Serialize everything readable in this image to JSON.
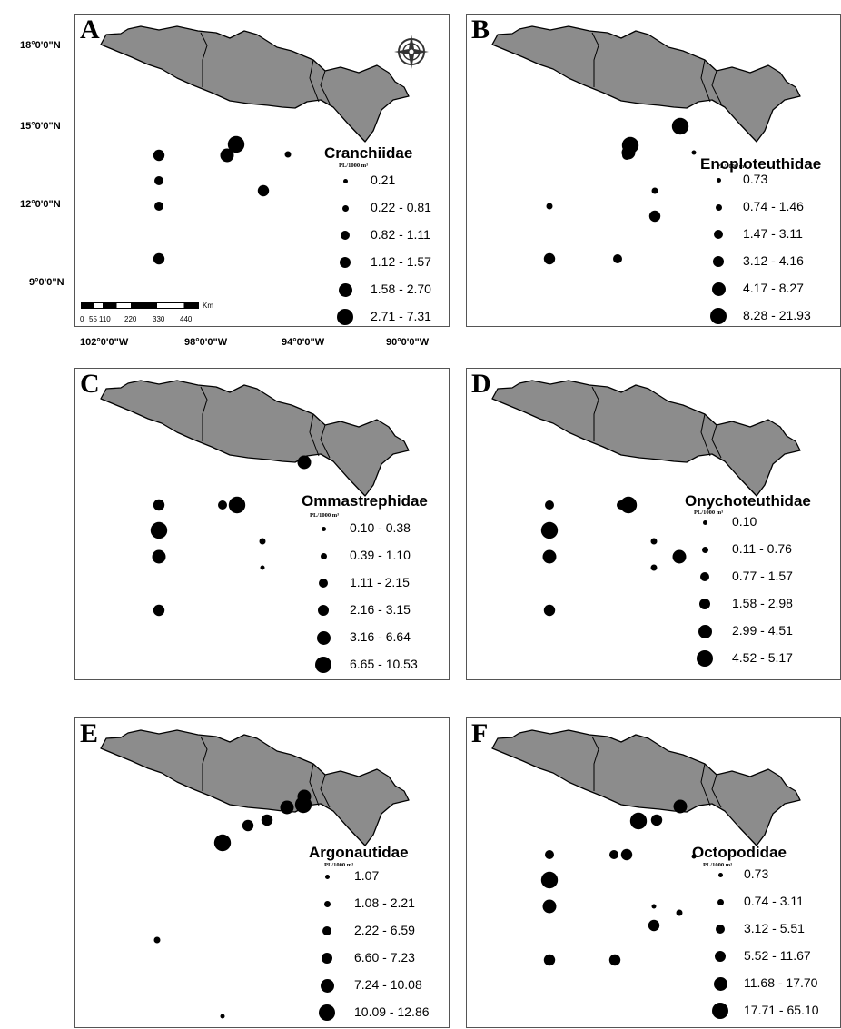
{
  "colors": {
    "land": "#8c8c8c",
    "border": "#000000",
    "dot": "#000000"
  },
  "axes": {
    "lat_ticks": [
      "18°0'0\"N",
      "15°0'0\"N",
      "12°0'0\"N",
      "9°0'0\"N"
    ],
    "lon_ticks": [
      "102°0'0\"W",
      "98°0'0\"W",
      "94°0'0\"W",
      "90°0'0\"W"
    ]
  },
  "scalebar": {
    "unit": "Km",
    "ticks": [
      "0",
      "55",
      "110",
      "220",
      "330",
      "440"
    ]
  },
  "compass": {
    "icon": "compass-rose-icon"
  },
  "unit_label": "PL/1000 m³",
  "panels": [
    {
      "id": "A",
      "family": "Cranchiidae",
      "classes": [
        "0.21",
        "0.22 - 0.81",
        "0.82 - 1.11",
        "1.12 - 1.57",
        "1.58 - 2.70",
        "2.71 - 7.31"
      ]
    },
    {
      "id": "B",
      "family": "Enoploteuthidae",
      "classes": [
        "0.73",
        "0.74 - 1.46",
        "1.47 - 3.11",
        "3.12 - 4.16",
        "4.17 - 8.27",
        "8.28 - 21.93"
      ]
    },
    {
      "id": "C",
      "family": "Ommastrephidae",
      "classes": [
        "0.10 - 0.38",
        "0.39 - 1.10",
        "1.11 - 2.15",
        "2.16 - 3.15",
        "3.16 - 6.64",
        "6.65 - 10.53"
      ]
    },
    {
      "id": "D",
      "family": "Onychoteuthidae",
      "classes": [
        "0.10",
        "0.11 - 0.76",
        "0.77 - 1.57",
        "1.58 - 2.98",
        "2.99 - 4.51",
        "4.52 - 5.17"
      ]
    },
    {
      "id": "E",
      "family": "Argonautidae",
      "classes": [
        "1.07",
        "1.08 - 2.21",
        "2.22 - 6.59",
        "6.60 - 7.23",
        "7.24 - 10.08",
        "10.09 - 12.86"
      ]
    },
    {
      "id": "F",
      "family": "Octopodidae",
      "classes": [
        "0.73",
        "0.74 - 3.11",
        "3.12 - 5.51",
        "5.52 - 11.67",
        "11.68 - 17.70",
        "17.71 - 65.10"
      ]
    }
  ]
}
